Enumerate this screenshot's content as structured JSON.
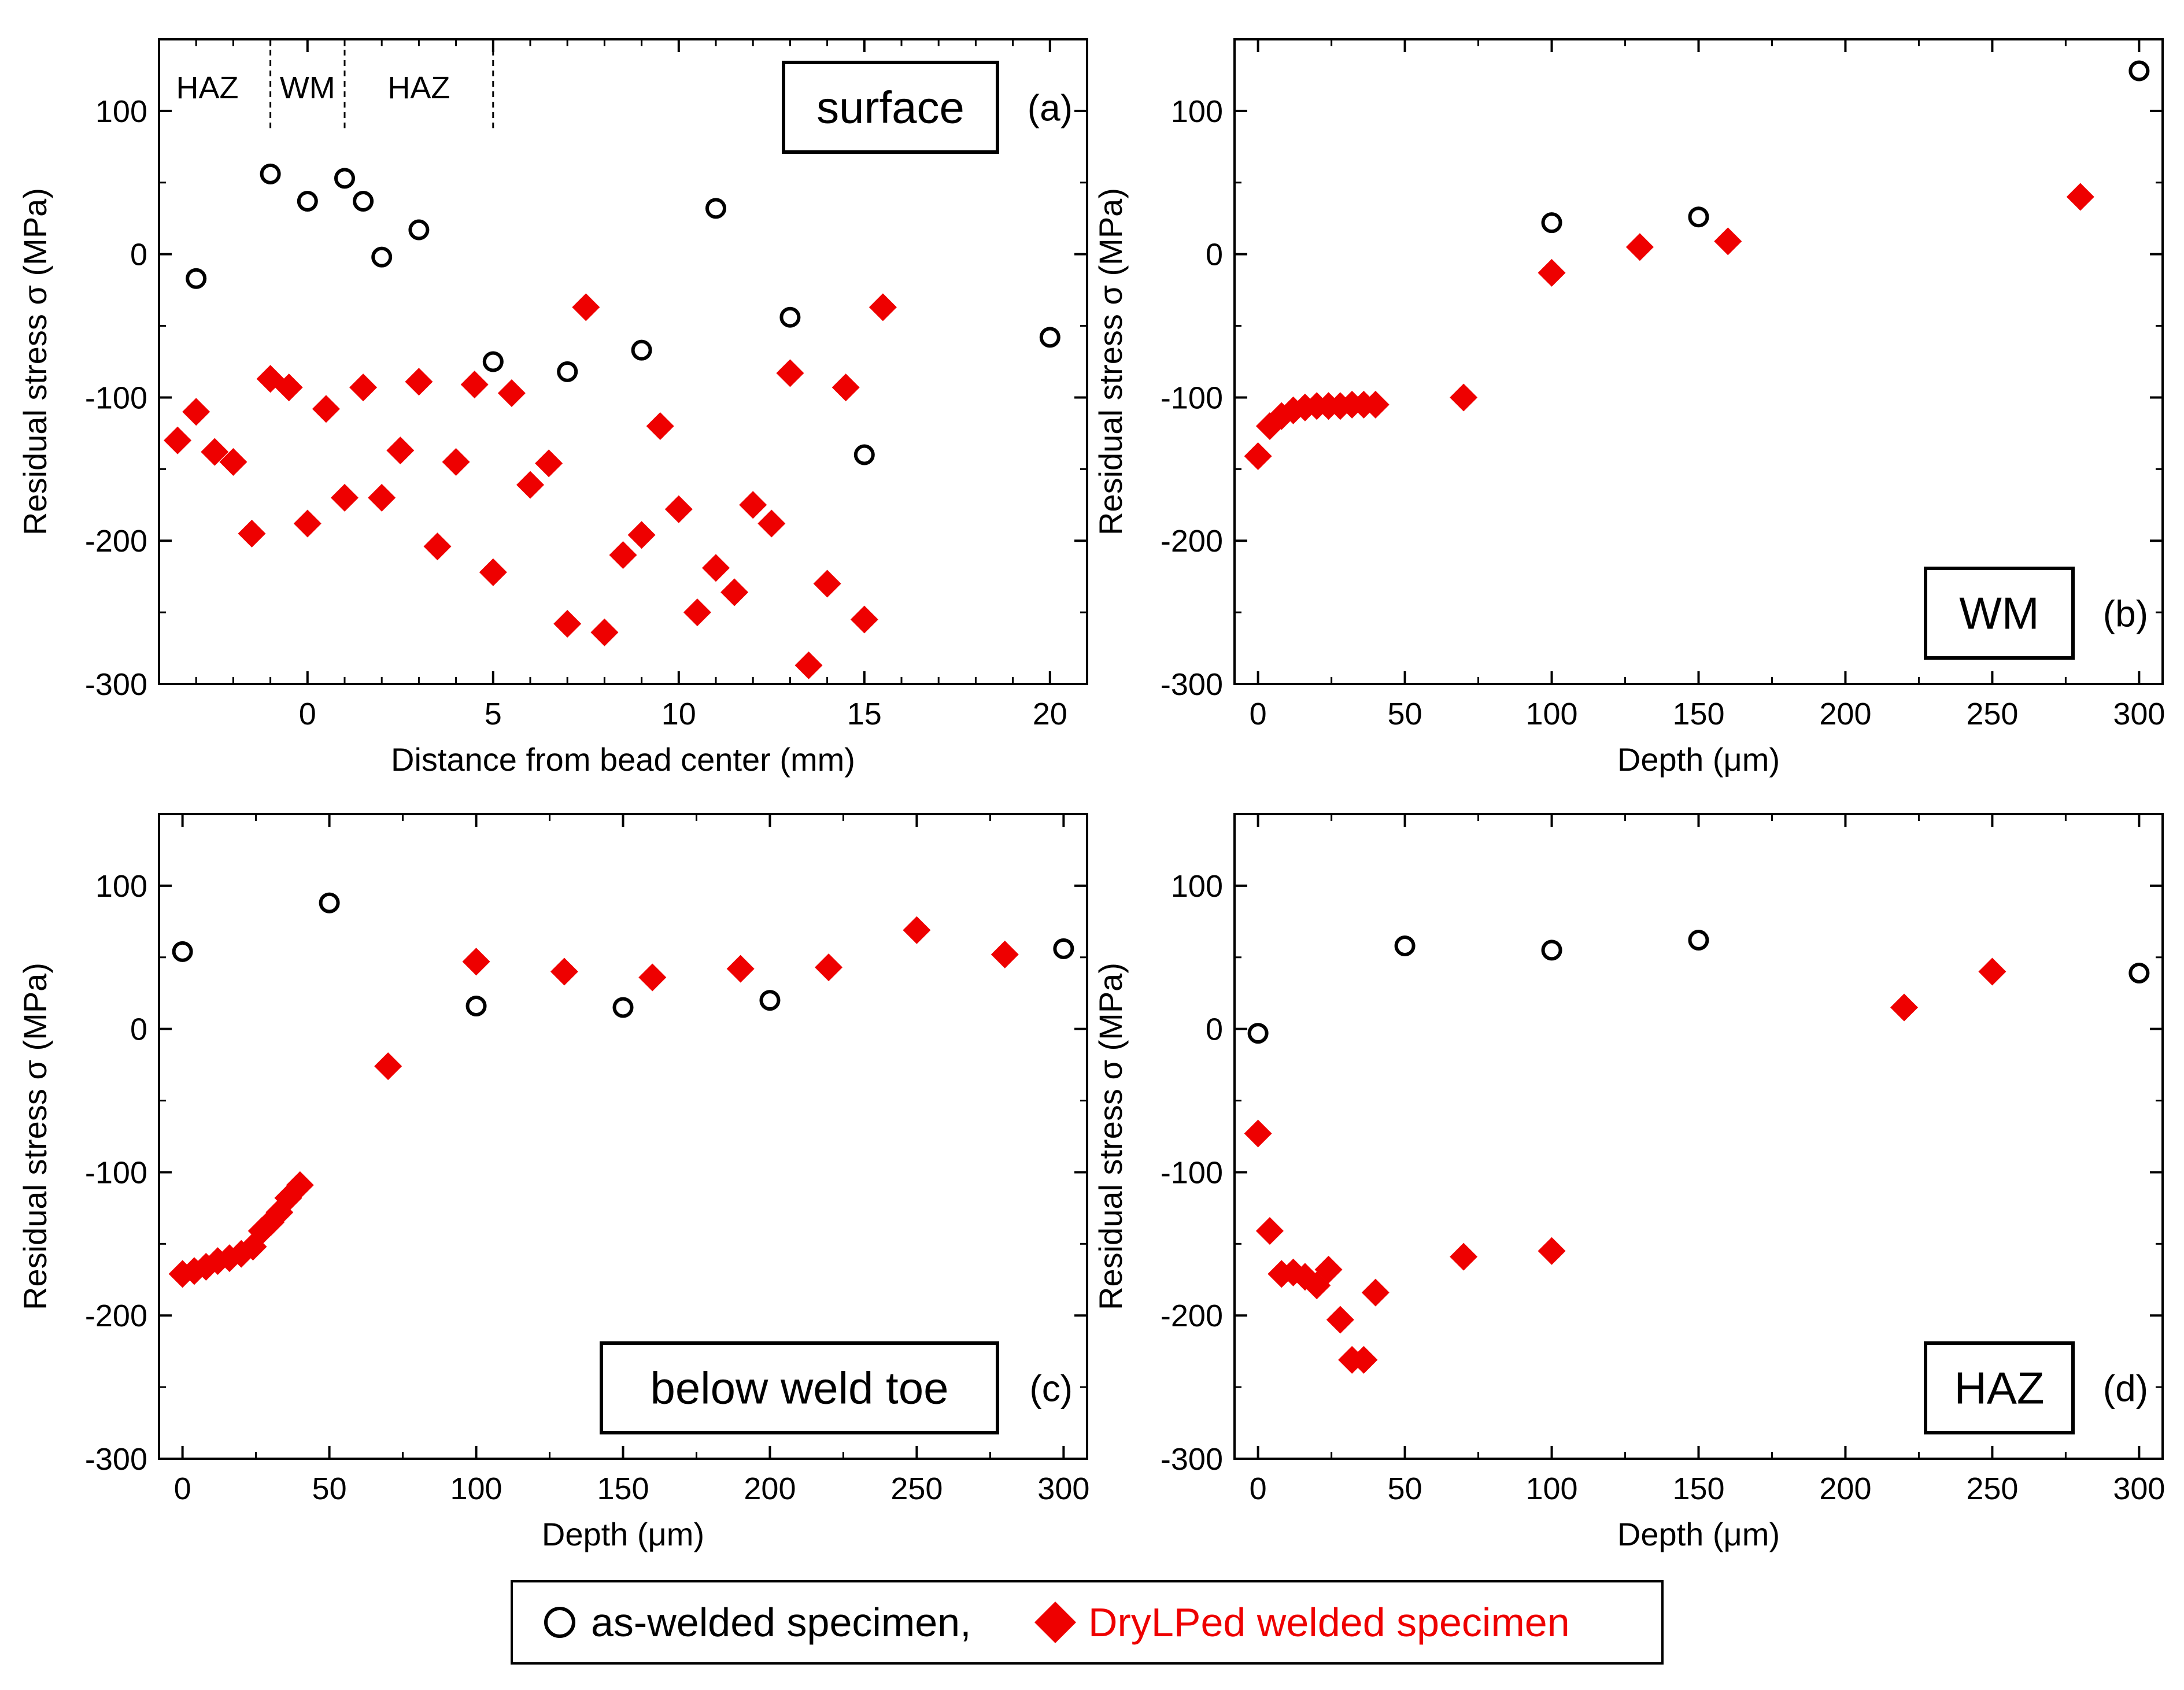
{
  "colors": {
    "as_welded": "#000000",
    "drylped": "#ee0000"
  },
  "legend": {
    "as_welded_label": "as-welded  specimen,",
    "drylped_label": "DryLPed welded specimen"
  },
  "chart_data": [
    {
      "id": "a",
      "type": "scatter",
      "tag": "(a)",
      "box_label": "surface",
      "xlabel": "Distance from bead center (mm)",
      "ylabel": "Residual stress σ (MPa)",
      "xlim": [
        -4,
        21
      ],
      "ylim": [
        -300,
        150
      ],
      "xticks": [
        0,
        5,
        10,
        15,
        20
      ],
      "xtick_labels": [
        "0",
        "5",
        "10",
        "15",
        "20"
      ],
      "yticks": [
        100,
        0,
        -100,
        -200,
        -300
      ],
      "ytick_labels": [
        "100",
        "0",
        "-100",
        "-200",
        "-300"
      ],
      "regions": [
        {
          "label": "HAZ",
          "center": -2.7
        },
        {
          "label": "WM",
          "center": 0
        },
        {
          "label": "HAZ",
          "center": 3.0
        }
      ],
      "region_dividers": [
        -1,
        1,
        5
      ],
      "series": [
        {
          "name": "as-welded specimen",
          "marker": "circle",
          "points": [
            [
              -3,
              -17
            ],
            [
              -1,
              56
            ],
            [
              0,
              37
            ],
            [
              1,
              53
            ],
            [
              1.5,
              37
            ],
            [
              2,
              -2
            ],
            [
              3,
              17
            ],
            [
              5,
              -75
            ],
            [
              7,
              -82
            ],
            [
              9,
              -67
            ],
            [
              11,
              32
            ],
            [
              13,
              -44
            ],
            [
              15,
              -140
            ],
            [
              20,
              -58
            ]
          ]
        },
        {
          "name": "DryLPed welded specimen",
          "marker": "diamond",
          "points": [
            [
              -3.5,
              -130
            ],
            [
              -3,
              -110
            ],
            [
              -2.5,
              -138
            ],
            [
              -2,
              -145
            ],
            [
              -1.5,
              -195
            ],
            [
              -1,
              -87
            ],
            [
              -0.5,
              -93
            ],
            [
              0,
              -188
            ],
            [
              0.5,
              -108
            ],
            [
              1,
              -170
            ],
            [
              1.5,
              -93
            ],
            [
              2,
              -170
            ],
            [
              2.5,
              -137
            ],
            [
              3,
              -89
            ],
            [
              3.5,
              -204
            ],
            [
              4,
              -145
            ],
            [
              4.5,
              -91
            ],
            [
              5,
              -222
            ],
            [
              5.5,
              -97
            ],
            [
              6,
              -161
            ],
            [
              6.5,
              -146
            ],
            [
              7,
              -258
            ],
            [
              7.5,
              -37
            ],
            [
              8,
              -264
            ],
            [
              8.5,
              -210
            ],
            [
              9,
              -196
            ],
            [
              9.5,
              -120
            ],
            [
              10,
              -178
            ],
            [
              10.5,
              -250
            ],
            [
              11,
              -219
            ],
            [
              11.5,
              -236
            ],
            [
              12,
              -175
            ],
            [
              12.5,
              -188
            ],
            [
              13,
              -83
            ],
            [
              13.5,
              -287
            ],
            [
              14,
              -230
            ],
            [
              14.5,
              -93
            ],
            [
              15,
              -255
            ],
            [
              15.5,
              -37
            ]
          ]
        }
      ]
    },
    {
      "id": "b",
      "type": "scatter",
      "tag": "(b)",
      "box_label": "WM",
      "xlabel": "Depth (μm)",
      "ylabel": "Residual stress σ (MPa)",
      "xlim": [
        -8,
        308
      ],
      "ylim": [
        -300,
        150
      ],
      "xticks": [
        0,
        50,
        100,
        150,
        200,
        250,
        300
      ],
      "xtick_labels": [
        "0",
        "50",
        "100",
        "150",
        "200",
        "250",
        "300"
      ],
      "yticks": [
        100,
        0,
        -100,
        -200,
        -300
      ],
      "ytick_labels": [
        "100",
        "0",
        "-100",
        "-200",
        "-300"
      ],
      "series": [
        {
          "name": "as-welded specimen",
          "marker": "circle",
          "points": [
            [
              100,
              22
            ],
            [
              150,
              26
            ],
            [
              300,
              128
            ]
          ]
        },
        {
          "name": "DryLPed welded specimen",
          "marker": "diamond",
          "points": [
            [
              0,
              -141
            ],
            [
              4,
              -120
            ],
            [
              8,
              -113
            ],
            [
              12,
              -109
            ],
            [
              16,
              -107
            ],
            [
              20,
              -106
            ],
            [
              24,
              -106
            ],
            [
              28,
              -106
            ],
            [
              32,
              -105
            ],
            [
              36,
              -105
            ],
            [
              40,
              -105
            ],
            [
              70,
              -100
            ],
            [
              100,
              -13
            ],
            [
              130,
              5
            ],
            [
              160,
              9
            ],
            [
              280,
              40
            ]
          ]
        }
      ]
    },
    {
      "id": "c",
      "type": "scatter",
      "tag": "(c)",
      "box_label": "below weld toe",
      "xlabel": "Depth (μm)",
      "ylabel": "Residual stress σ (MPa)",
      "xlim": [
        -8,
        308
      ],
      "ylim": [
        -300,
        150
      ],
      "xticks": [
        0,
        50,
        100,
        150,
        200,
        250,
        300
      ],
      "xtick_labels": [
        "0",
        "50",
        "100",
        "150",
        "200",
        "250",
        "300"
      ],
      "yticks": [
        100,
        0,
        -100,
        -200,
        -300
      ],
      "ytick_labels": [
        "100",
        "0",
        "-100",
        "-200",
        "-300"
      ],
      "series": [
        {
          "name": "as-welded specimen",
          "marker": "circle",
          "points": [
            [
              0,
              54
            ],
            [
              50,
              88
            ],
            [
              100,
              16
            ],
            [
              150,
              15
            ],
            [
              200,
              20
            ],
            [
              300,
              56
            ]
          ]
        },
        {
          "name": "DryLPed welded specimen",
          "marker": "diamond",
          "points": [
            [
              0,
              -171
            ],
            [
              4,
              -169
            ],
            [
              8,
              -166
            ],
            [
              12,
              -162
            ],
            [
              16,
              -160
            ],
            [
              20,
              -157
            ],
            [
              24,
              -152
            ],
            [
              27,
              -141
            ],
            [
              30,
              -135
            ],
            [
              33,
              -128
            ],
            [
              36,
              -118
            ],
            [
              40,
              -109
            ],
            [
              70,
              -26
            ],
            [
              100,
              47
            ],
            [
              130,
              40
            ],
            [
              160,
              36
            ],
            [
              190,
              42
            ],
            [
              220,
              43
            ],
            [
              250,
              69
            ],
            [
              280,
              52
            ]
          ]
        }
      ]
    },
    {
      "id": "d",
      "type": "scatter",
      "tag": "(d)",
      "box_label": "HAZ",
      "xlabel": "Depth (μm)",
      "ylabel": "Residual stress σ (MPa)",
      "xlim": [
        -8,
        308
      ],
      "ylim": [
        -300,
        150
      ],
      "xticks": [
        0,
        50,
        100,
        150,
        200,
        250,
        300
      ],
      "xtick_labels": [
        "0",
        "50",
        "100",
        "150",
        "200",
        "250",
        "300"
      ],
      "yticks": [
        100,
        0,
        -100,
        -200,
        -300
      ],
      "ytick_labels": [
        "100",
        "0",
        "-100",
        "-200",
        "-300"
      ],
      "series": [
        {
          "name": "as-welded specimen",
          "marker": "circle",
          "points": [
            [
              0,
              -3
            ],
            [
              50,
              58
            ],
            [
              100,
              55
            ],
            [
              150,
              62
            ],
            [
              300,
              39
            ]
          ]
        },
        {
          "name": "DryLPed welded specimen",
          "marker": "diamond",
          "points": [
            [
              0,
              -73
            ],
            [
              4,
              -141
            ],
            [
              8,
              -171
            ],
            [
              12,
              -170
            ],
            [
              16,
              -173
            ],
            [
              20,
              -179
            ],
            [
              24,
              -168
            ],
            [
              28,
              -203
            ],
            [
              32,
              -231
            ],
            [
              36,
              -231
            ],
            [
              40,
              -184
            ],
            [
              70,
              -159
            ],
            [
              100,
              -155
            ],
            [
              220,
              15
            ],
            [
              250,
              40
            ]
          ]
        }
      ]
    }
  ]
}
